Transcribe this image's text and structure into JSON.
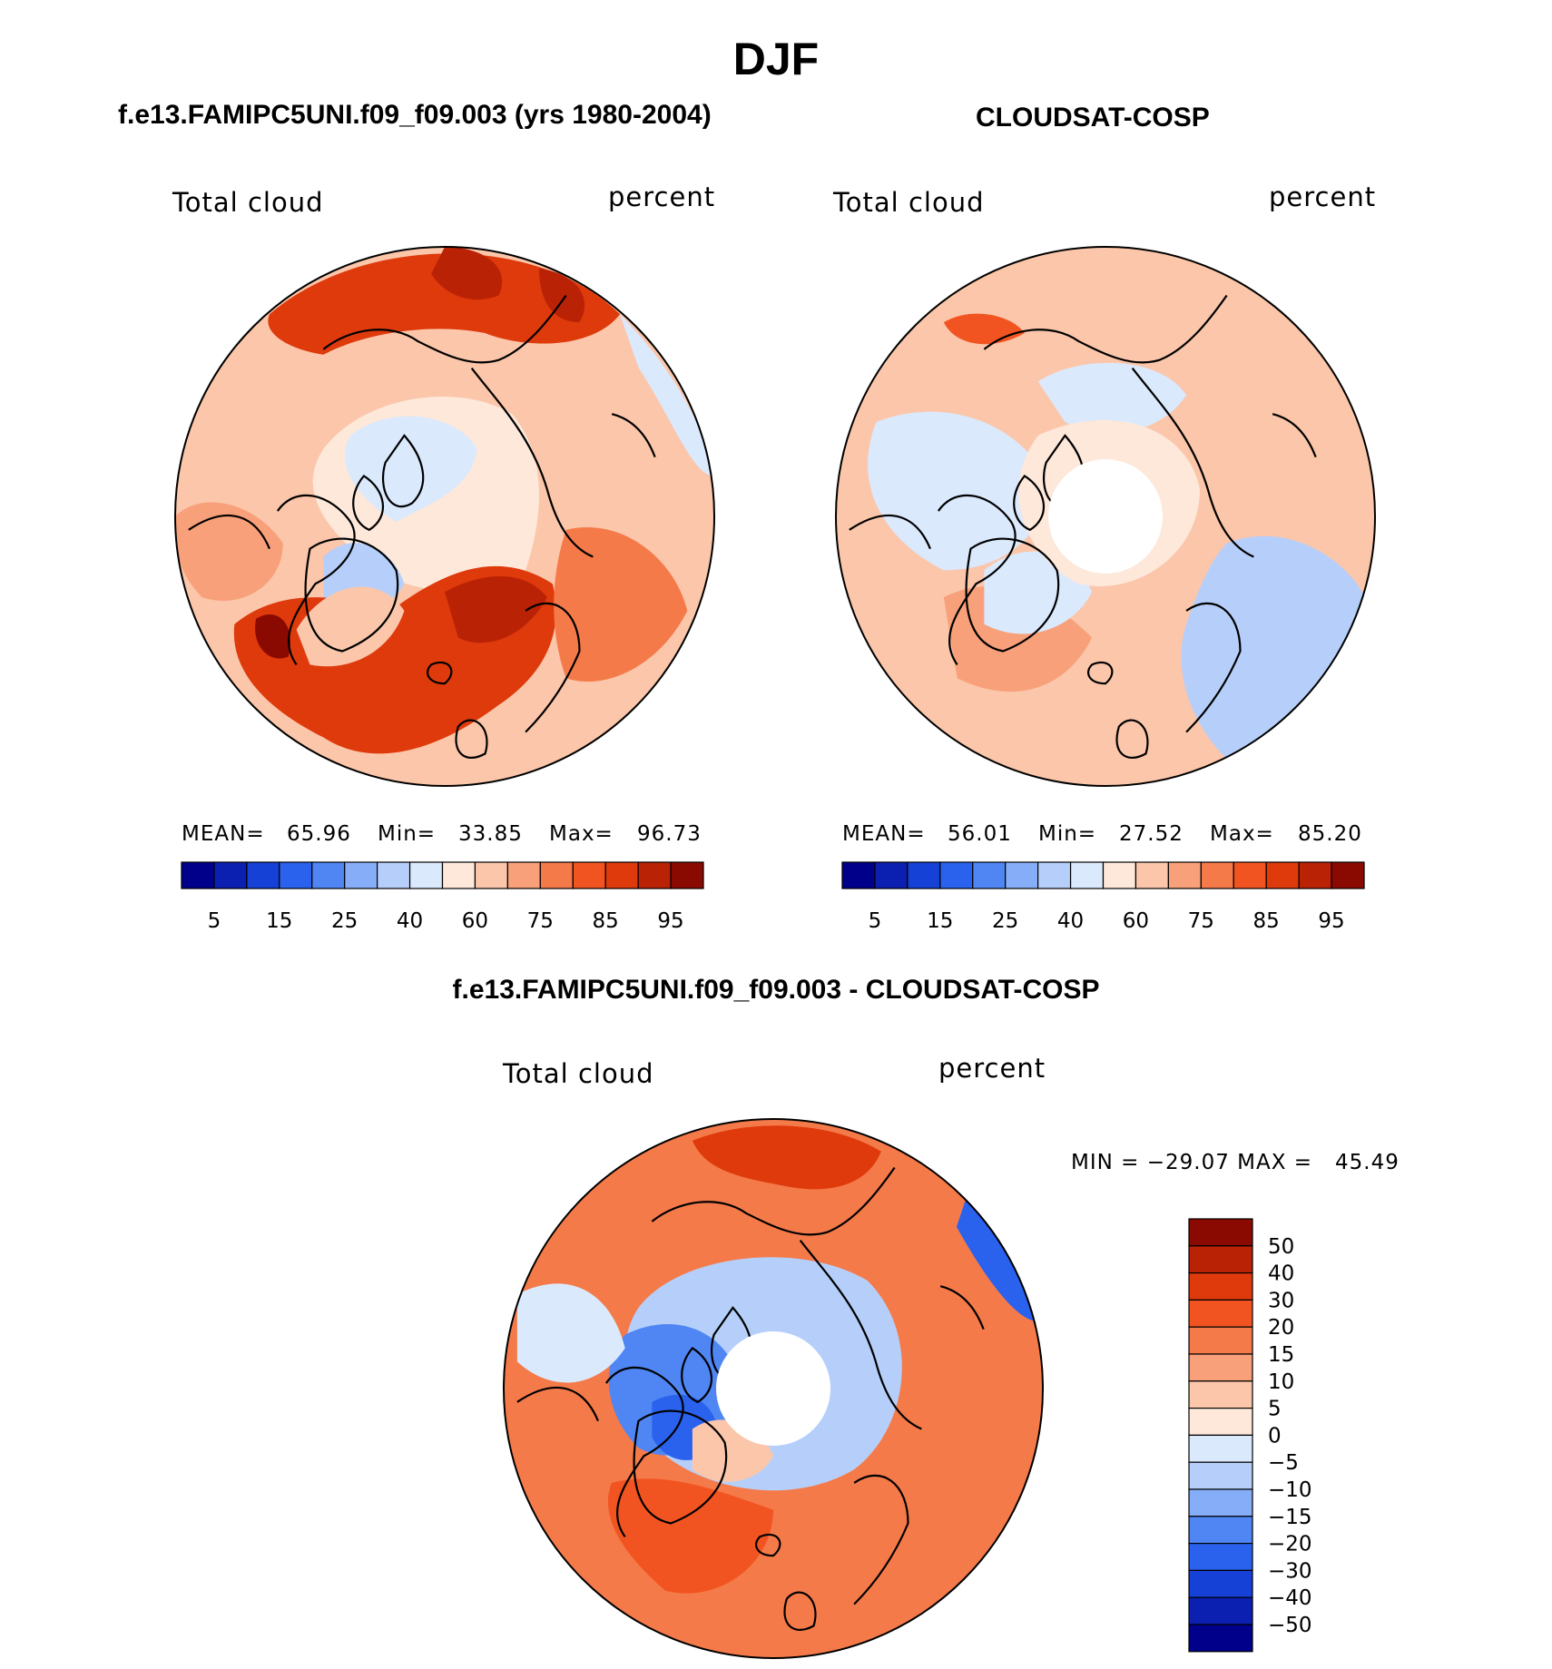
{
  "page_title": "DJF",
  "colors": {
    "c0": "#00008a",
    "c1": "#0b1fb0",
    "c2": "#1641d6",
    "c3": "#2a62ee",
    "c4": "#4f86f4",
    "c5": "#86aef8",
    "c6": "#b6cffa",
    "c7": "#dbe9fd",
    "c8": "#fde8da",
    "c9": "#fbc6aa",
    "c10": "#f8a07a",
    "c11": "#f57a4a",
    "c12": "#f25421",
    "c13": "#de3a0c",
    "c14": "#ba2206",
    "c15": "#8a0a02"
  },
  "panels": [
    {
      "title": "f.e13.FAMIPC5UNI.f09_f09.003 (yrs 1980-2004)",
      "variable": "Total cloud",
      "units": "percent",
      "stats": {
        "mean_label": "MEAN=",
        "mean": "65.96",
        "min_label": "Min=",
        "min": "33.85",
        "max_label": "Max=",
        "max": "96.73"
      }
    },
    {
      "title": "CLOUDSAT-COSP",
      "variable": "Total cloud",
      "units": "percent",
      "stats": {
        "mean_label": "MEAN=",
        "mean": "56.01",
        "min_label": "Min=",
        "min": "27.52",
        "max_label": "Max=",
        "max": "85.20"
      }
    },
    {
      "title": "f.e13.FAMIPC5UNI.f09_f09.003 - CLOUDSAT-COSP",
      "variable": "Total cloud",
      "units": "percent",
      "stats_text": "MIN = −29.07 MAX =   45.49"
    }
  ],
  "chart_data": [
    {
      "type": "heatmap",
      "projection": "north-polar-stereographic",
      "title": "f.e13.FAMIPC5UNI.f09_f09.003 (yrs 1980-2004)",
      "variable": "Total cloud",
      "units": "percent",
      "mean": 65.96,
      "min": 33.85,
      "max": 96.73,
      "colorbar_ticks": [
        "5",
        "15",
        "25",
        "40",
        "60",
        "75",
        "85",
        "95"
      ],
      "regions": [
        {
          "name": "background",
          "color_index": 9
        },
        {
          "name": "arctic-ocean",
          "color_index": 8
        },
        {
          "name": "canadian-arctic",
          "color_index": 7
        },
        {
          "name": "hudson-bay",
          "color_index": 6
        },
        {
          "name": "siberia-north",
          "color_index": 13
        },
        {
          "name": "siberia-peak",
          "color_index": 14
        },
        {
          "name": "bering-peak",
          "color_index": 14
        },
        {
          "name": "north-atlantic",
          "color_index": 13
        },
        {
          "name": "greenland-sea-peak",
          "color_index": 15
        },
        {
          "name": "norwegian-sea",
          "color_index": 14
        },
        {
          "name": "greenland",
          "color_index": 9
        },
        {
          "name": "north-america",
          "color_index": 10
        },
        {
          "name": "pacific-edge",
          "color_index": 7
        },
        {
          "name": "europe",
          "color_index": 11
        }
      ]
    },
    {
      "type": "heatmap",
      "projection": "north-polar-stereographic",
      "title": "CLOUDSAT-COSP",
      "variable": "Total cloud",
      "units": "percent",
      "mean": 56.01,
      "min": 27.52,
      "max": 85.2,
      "colorbar_ticks": [
        "5",
        "15",
        "25",
        "40",
        "60",
        "75",
        "85",
        "95"
      ],
      "regions": [
        {
          "name": "background",
          "color_index": 9
        },
        {
          "name": "pole-no-data",
          "color_index": -1
        },
        {
          "name": "canadian-arctic",
          "color_index": 7
        },
        {
          "name": "east-siberia",
          "color_index": 7
        },
        {
          "name": "europe-asia",
          "color_index": 6
        },
        {
          "name": "north-atlantic",
          "color_index": 10
        },
        {
          "name": "alaska-band",
          "color_index": 12
        },
        {
          "name": "greenland",
          "color_index": 7
        },
        {
          "name": "arctic-ocean",
          "color_index": 8
        }
      ]
    },
    {
      "type": "heatmap",
      "projection": "north-polar-stereographic",
      "title": "f.e13.FAMIPC5UNI.f09_f09.003 - CLOUDSAT-COSP",
      "variable": "Total cloud",
      "units": "percent",
      "min": -29.07,
      "max": 45.49,
      "colorbar_ticks": [
        "50",
        "40",
        "30",
        "20",
        "15",
        "10",
        "5",
        "0",
        "−5",
        "−10",
        "−15",
        "−20",
        "−30",
        "−40",
        "−50"
      ],
      "regions": [
        {
          "name": "background",
          "color_index": 11
        },
        {
          "name": "pole-no-data",
          "color_index": -1
        },
        {
          "name": "arctic-ring",
          "color_index": 6
        },
        {
          "name": "canadian-archipelago",
          "color_index": 4
        },
        {
          "name": "baffin-bay",
          "color_index": 3
        },
        {
          "name": "siberia",
          "color_index": 13
        },
        {
          "name": "north-atlantic",
          "color_index": 12
        },
        {
          "name": "europe-negative",
          "color_index": 3
        },
        {
          "name": "north-america",
          "color_index": 7
        },
        {
          "name": "greenland",
          "color_index": 9
        }
      ]
    }
  ]
}
